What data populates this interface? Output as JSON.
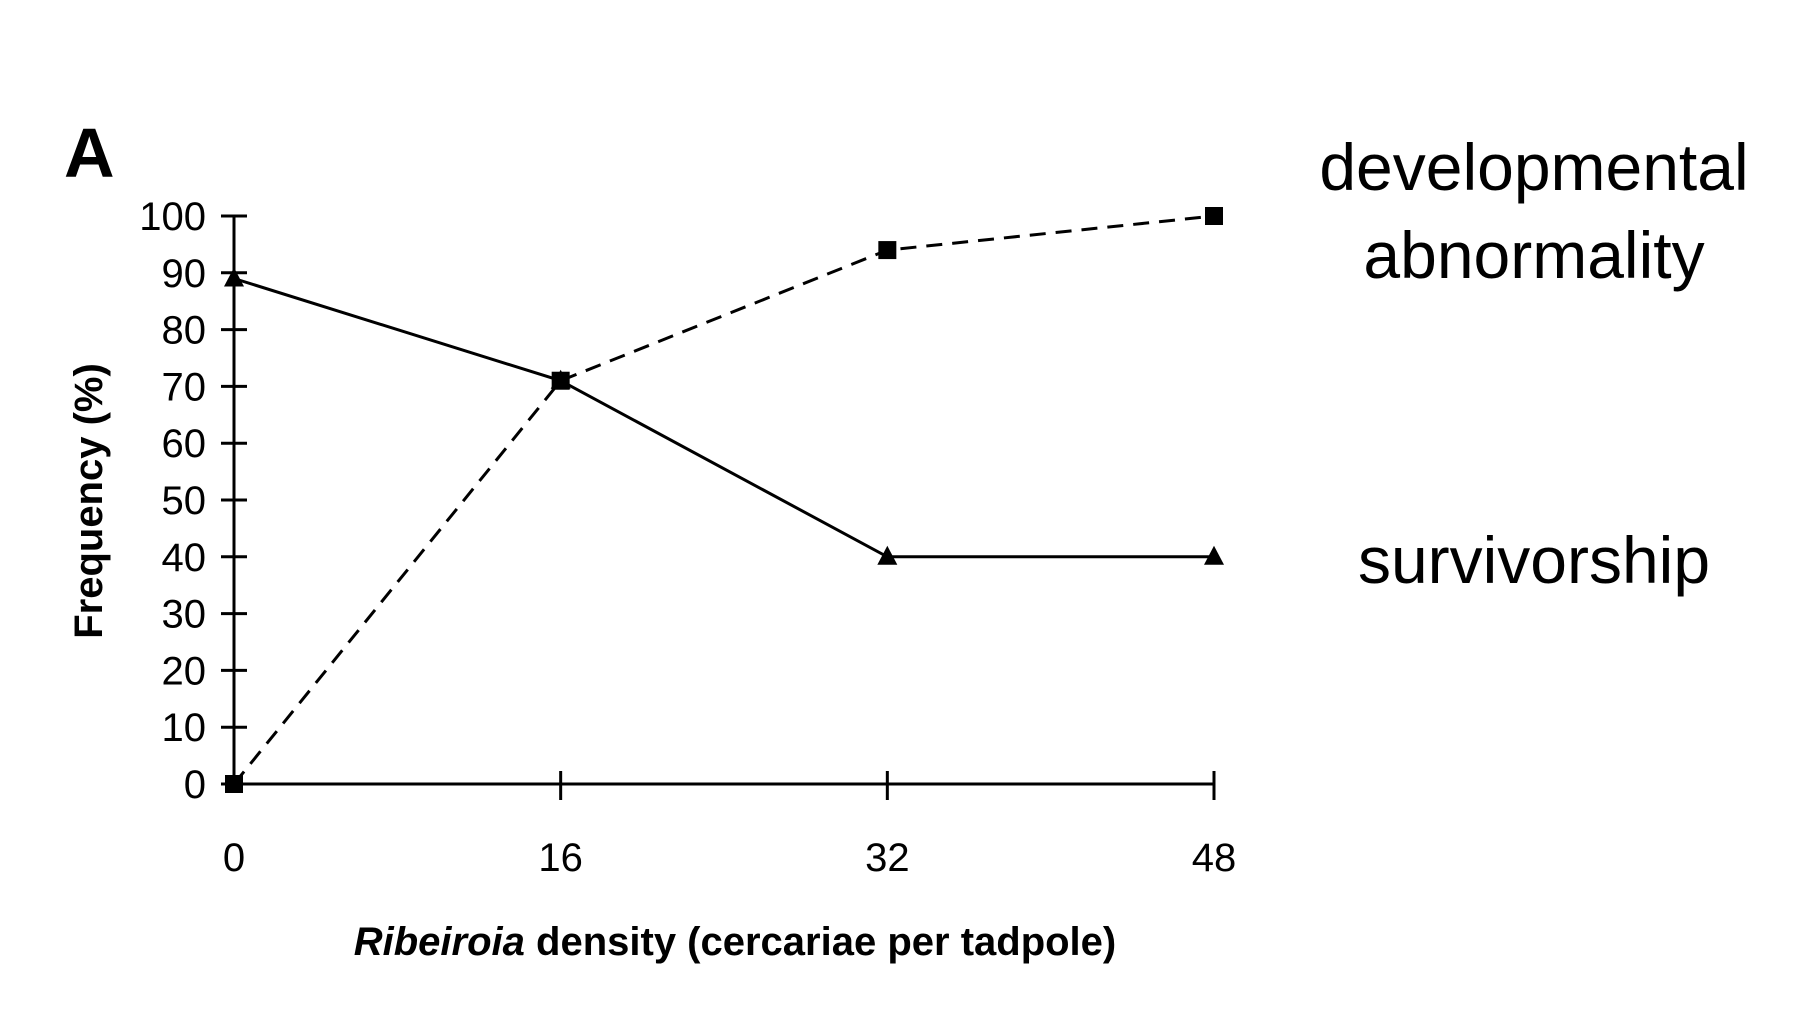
{
  "chart_data": {
    "type": "line",
    "panel_label": "A",
    "x": [
      0,
      16,
      32,
      48
    ],
    "x_tick_labels": [
      "0",
      "16",
      "32",
      "48"
    ],
    "y_ticks": [
      0,
      10,
      20,
      30,
      40,
      50,
      60,
      70,
      80,
      90,
      100
    ],
    "xlim": [
      0,
      48
    ],
    "ylim": [
      0,
      100
    ],
    "xlabel_italic": "Ribeiroia",
    "xlabel_rest": " density (cercariae per tadpole)",
    "ylabel": "Frequency (%)",
    "grid": false,
    "series": [
      {
        "name_lines": [
          "developmental",
          "abnormality"
        ],
        "values": [
          0,
          71,
          94,
          100
        ],
        "marker": "square",
        "line_style": "dashed",
        "color": "#000000"
      },
      {
        "name_lines": [
          "survivorship"
        ],
        "values": [
          89,
          71,
          40,
          40
        ],
        "marker": "triangle",
        "line_style": "solid",
        "color": "#000000"
      }
    ]
  }
}
